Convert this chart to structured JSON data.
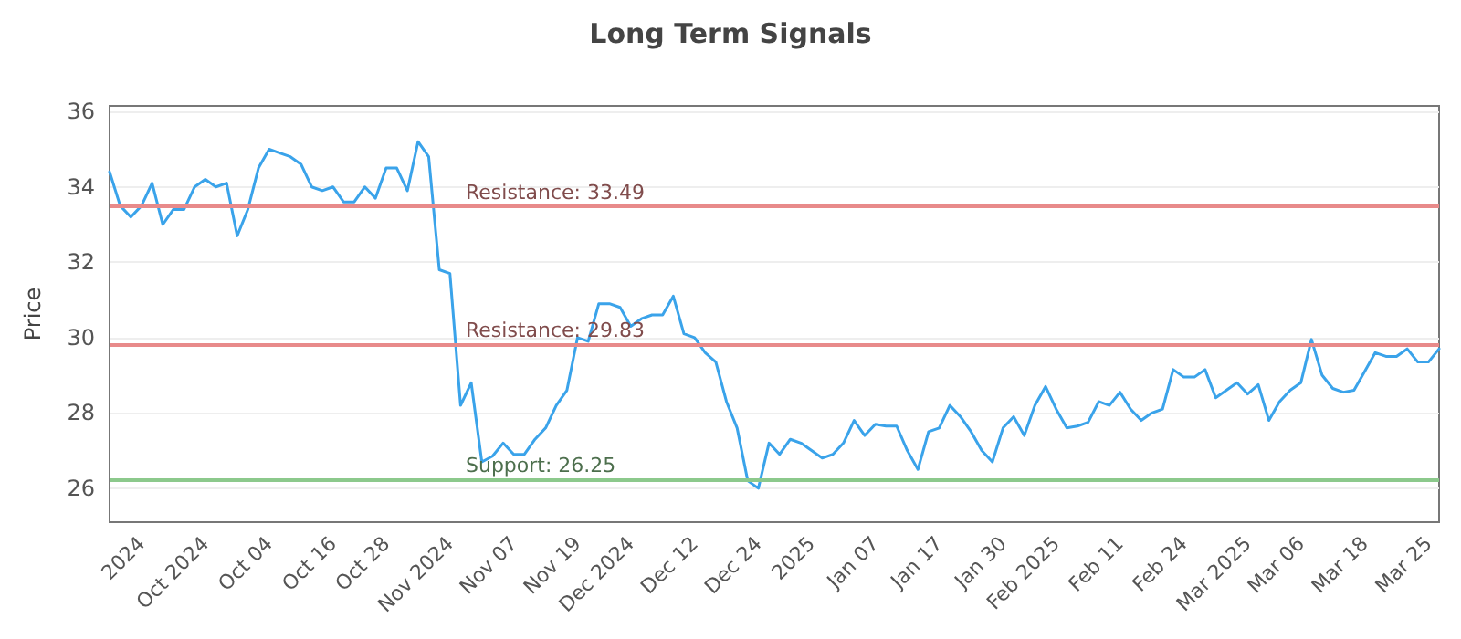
{
  "chart_data": {
    "type": "line",
    "title": "Long Term Signals",
    "ylabel": "Price",
    "categories": [
      null,
      null,
      null,
      "2024",
      null,
      null,
      null,
      null,
      null,
      "Oct 2024",
      null,
      null,
      null,
      null,
      null,
      "Oct 04",
      null,
      null,
      null,
      null,
      null,
      "Oct 16",
      null,
      null,
      null,
      null,
      "Oct 28",
      null,
      null,
      null,
      null,
      null,
      "Nov 2024",
      null,
      null,
      null,
      null,
      null,
      "Nov 07",
      null,
      null,
      null,
      null,
      null,
      "Nov 19",
      null,
      null,
      null,
      null,
      "Dec 2024",
      null,
      null,
      null,
      null,
      null,
      "Dec 12",
      null,
      null,
      null,
      null,
      null,
      "Dec 24",
      null,
      null,
      null,
      null,
      "2025",
      null,
      null,
      null,
      null,
      null,
      "Jan 07",
      null,
      null,
      null,
      null,
      null,
      "Jan 17",
      null,
      null,
      null,
      null,
      null,
      "Jan 30",
      null,
      null,
      null,
      null,
      "Feb 2025",
      null,
      null,
      null,
      null,
      null,
      "Feb 11",
      null,
      null,
      null,
      null,
      null,
      "Feb 24",
      null,
      null,
      null,
      null,
      null,
      "Mar 2025",
      null,
      null,
      null,
      null,
      "Mar 06",
      null,
      null,
      null,
      null,
      null,
      "Mar 18",
      null,
      null,
      null,
      null,
      null,
      "Mar 25",
      null
    ],
    "series": [
      {
        "color": "#3aa3ea",
        "values": [
          34.4,
          33.5,
          33.2,
          33.5,
          34.1,
          33.0,
          33.4,
          33.4,
          34.0,
          34.2,
          34.0,
          34.1,
          32.7,
          33.4,
          34.5,
          35.0,
          34.9,
          34.8,
          34.6,
          34.0,
          33.9,
          34.0,
          33.6,
          33.6,
          34.0,
          33.7,
          34.5,
          34.5,
          33.9,
          35.2,
          34.8,
          31.8,
          31.7,
          28.2,
          28.8,
          26.7,
          26.85,
          27.2,
          26.9,
          26.9,
          27.3,
          27.6,
          28.2,
          28.6,
          30.0,
          29.9,
          30.9,
          30.9,
          30.8,
          30.3,
          30.5,
          30.6,
          30.6,
          31.1,
          30.1,
          30.0,
          29.6,
          29.35,
          28.3,
          27.6,
          26.2,
          26.0,
          27.2,
          26.9,
          27.3,
          27.2,
          27.0,
          26.8,
          26.9,
          27.2,
          27.8,
          27.4,
          27.7,
          27.65,
          27.65,
          27.0,
          26.5,
          27.5,
          27.6,
          28.2,
          27.9,
          27.5,
          27.0,
          26.7,
          27.6,
          27.9,
          27.4,
          28.2,
          28.7,
          28.1,
          27.6,
          27.65,
          27.75,
          28.3,
          28.2,
          28.55,
          28.1,
          27.8,
          28.0,
          28.1,
          29.15,
          28.95,
          28.95,
          29.15,
          28.4,
          28.6,
          28.8,
          28.5,
          28.75,
          27.8,
          28.3,
          28.6,
          28.8,
          29.95,
          29.0,
          28.65,
          28.55,
          28.6,
          29.1,
          29.6,
          29.5,
          29.5,
          29.7,
          29.35,
          29.35,
          29.7
        ]
      }
    ],
    "ylim": [
      25.1,
      36.15
    ],
    "yticks": [
      26,
      28,
      30,
      32,
      34,
      36
    ],
    "grid": "y",
    "marker": "none",
    "ref_lines": [
      {
        "axis": "y",
        "value": 33.49,
        "label": "Resistance: 33.49",
        "color": "#e88a8a"
      },
      {
        "axis": "y",
        "value": 29.83,
        "label": "Resistance: 29.83",
        "color": "#e88a8a"
      },
      {
        "axis": "y",
        "value": 26.25,
        "label": "Support: 26.25",
        "color": "#8cc98c"
      }
    ]
  }
}
